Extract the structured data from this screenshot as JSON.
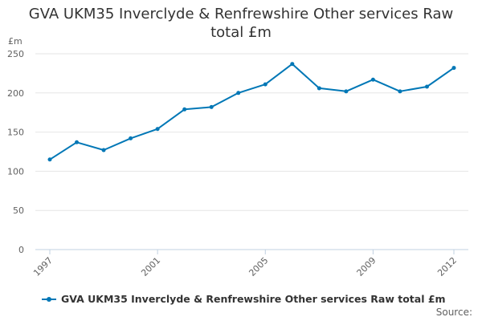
{
  "chart_data": {
    "type": "line",
    "title_lines": [
      "GVA UKM35 Inverclyde & Renfrewshire Other services Raw",
      "total £m"
    ],
    "ylabel": "£m",
    "xlabel": "",
    "ylim": [
      0,
      250
    ],
    "yticks": [
      0,
      50,
      100,
      150,
      200,
      250
    ],
    "xticks": [
      1997,
      2001,
      2005,
      2009,
      2012
    ],
    "x": [
      1997,
      1998,
      1999,
      2000,
      2001,
      2002,
      2003,
      2004,
      2005,
      2006,
      2007,
      2008,
      2009,
      2010,
      2011,
      2012
    ],
    "series": [
      {
        "name": "GVA UKM35 Inverclyde & Renfrewshire Other services Raw total £m",
        "color": "#0077b6",
        "values": [
          115,
          137,
          127,
          142,
          154,
          179,
          182,
          200,
          211,
          237,
          206,
          202,
          217,
          202,
          208,
          232
        ]
      }
    ],
    "grid": true,
    "legend": "bottom-left"
  },
  "source_label": "Source:"
}
